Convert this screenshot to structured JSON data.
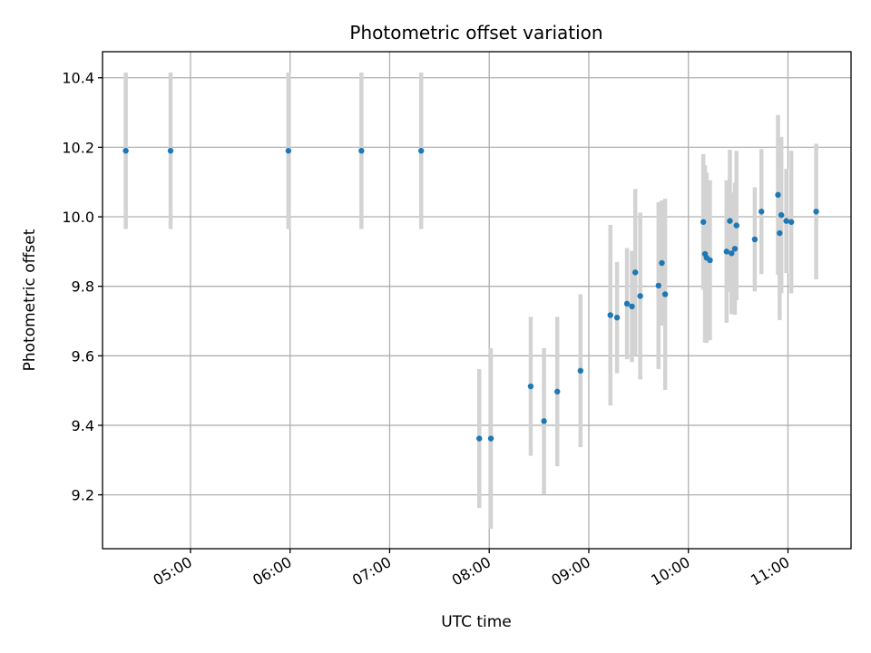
{
  "chart_data": {
    "type": "scatter",
    "title": "Photometric offset variation",
    "xlabel": "UTC time",
    "ylabel": "Photometric offset",
    "x_is_time": true,
    "xlim": [
      "04:07",
      "11:38"
    ],
    "ylim": [
      9.045,
      10.475
    ],
    "xticks": [
      "05:00",
      "06:00",
      "07:00",
      "08:00",
      "09:00",
      "10:00",
      "11:00"
    ],
    "yticks": [
      9.2,
      9.4,
      9.6,
      9.8,
      10.0,
      10.2,
      10.4
    ],
    "ytick_labels": [
      "9.2",
      "9.4",
      "9.6",
      "9.8",
      "10.0",
      "10.2",
      "10.4"
    ],
    "grid": true,
    "point_color": "#1f77b4",
    "errorbar_color": "#d3d3d3",
    "points": [
      {
        "t": "04:21",
        "y": 10.19,
        "err": 0.225
      },
      {
        "t": "04:48",
        "y": 10.19,
        "err": 0.225
      },
      {
        "t": "05:59",
        "y": 10.19,
        "err": 0.225
      },
      {
        "t": "06:43",
        "y": 10.19,
        "err": 0.225
      },
      {
        "t": "07:19",
        "y": 10.19,
        "err": 0.225
      },
      {
        "t": "07:54",
        "y": 9.362,
        "err": 0.2
      },
      {
        "t": "08:01",
        "y": 9.362,
        "err": 0.26
      },
      {
        "t": "08:25",
        "y": 9.512,
        "err": 0.2
      },
      {
        "t": "08:33",
        "y": 9.412,
        "err": 0.21
      },
      {
        "t": "08:41",
        "y": 9.497,
        "err": 0.215
      },
      {
        "t": "08:55",
        "y": 9.557,
        "err": 0.22
      },
      {
        "t": "09:13",
        "y": 9.717,
        "err": 0.26
      },
      {
        "t": "09:17",
        "y": 9.71,
        "err": 0.16
      },
      {
        "t": "09:23",
        "y": 9.75,
        "err": 0.16
      },
      {
        "t": "09:26",
        "y": 9.742,
        "err": 0.16
      },
      {
        "t": "09:28",
        "y": 9.84,
        "err": 0.24
      },
      {
        "t": "09:31",
        "y": 9.772,
        "err": 0.24
      },
      {
        "t": "09:42",
        "y": 9.802,
        "err": 0.24
      },
      {
        "t": "09:44",
        "y": 9.867,
        "err": 0.18
      },
      {
        "t": "09:46",
        "y": 9.777,
        "err": 0.275
      },
      {
        "t": "10:09",
        "y": 9.985,
        "err": 0.195
      },
      {
        "t": "10:10",
        "y": 9.893,
        "err": 0.255
      },
      {
        "t": "10:11",
        "y": 9.882,
        "err": 0.245
      },
      {
        "t": "10:13",
        "y": 9.875,
        "err": 0.23
      },
      {
        "t": "10:23",
        "y": 9.9,
        "err": 0.205
      },
      {
        "t": "10:25",
        "y": 9.988,
        "err": 0.205
      },
      {
        "t": "10:26",
        "y": 9.895,
        "err": 0.175
      },
      {
        "t": "10:28",
        "y": 9.908,
        "err": 0.19
      },
      {
        "t": "10:29",
        "y": 9.975,
        "err": 0.215
      },
      {
        "t": "10:40",
        "y": 9.935,
        "err": 0.15
      },
      {
        "t": "10:44",
        "y": 10.015,
        "err": 0.18
      },
      {
        "t": "10:54",
        "y": 10.063,
        "err": 0.23
      },
      {
        "t": "10:55",
        "y": 9.953,
        "err": 0.25
      },
      {
        "t": "10:56",
        "y": 10.005,
        "err": 0.225
      },
      {
        "t": "10:59",
        "y": 9.988,
        "err": 0.15
      },
      {
        "t": "11:02",
        "y": 9.985,
        "err": 0.205
      },
      {
        "t": "11:17",
        "y": 10.015,
        "err": 0.195
      }
    ]
  }
}
